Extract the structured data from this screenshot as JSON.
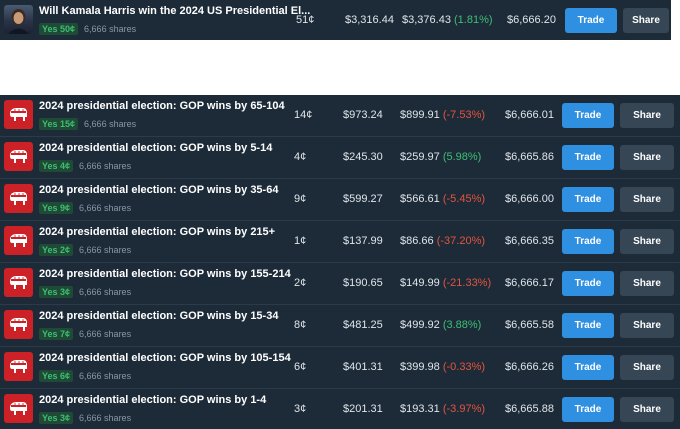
{
  "featured_market": {
    "title": "Will Kamala Harris win the 2024 US Presidential El...",
    "yes_label": "Yes 50¢",
    "shares": "6,666 shares",
    "price": "51¢",
    "cost": "$3,316.44",
    "value": "$3,376.43",
    "change": "(1.81%)",
    "change_direction": "up",
    "payout": "$6,666.20",
    "trade_label": "Trade",
    "share_label": "Share"
  },
  "markets": [
    {
      "title": "2024 presidential election: GOP wins by 65-104",
      "yes_label": "Yes 15¢",
      "shares": "6,666 shares",
      "price": "14¢",
      "cost": "$973.24",
      "value": "$899.91",
      "change": "(-7.53%)",
      "change_direction": "down",
      "payout": "$6,666.01",
      "trade_label": "Trade",
      "share_label": "Share"
    },
    {
      "title": "2024 presidential election: GOP wins by 5-14",
      "yes_label": "Yes 4¢",
      "shares": "6,666 shares",
      "price": "4¢",
      "cost": "$245.30",
      "value": "$259.97",
      "change": "(5.98%)",
      "change_direction": "up",
      "payout": "$6,665.86",
      "trade_label": "Trade",
      "share_label": "Share"
    },
    {
      "title": "2024 presidential election: GOP wins by 35-64",
      "yes_label": "Yes 9¢",
      "shares": "6,666 shares",
      "price": "9¢",
      "cost": "$599.27",
      "value": "$566.61",
      "change": "(-5.45%)",
      "change_direction": "down",
      "payout": "$6,666.00",
      "trade_label": "Trade",
      "share_label": "Share"
    },
    {
      "title": "2024 presidential election: GOP wins by 215+",
      "yes_label": "Yes 2¢",
      "shares": "6,666 shares",
      "price": "1¢",
      "cost": "$137.99",
      "value": "$86.66",
      "change": "(-37.20%)",
      "change_direction": "down",
      "payout": "$6,666.35",
      "trade_label": "Trade",
      "share_label": "Share"
    },
    {
      "title": "2024 presidential election: GOP wins by 155-214",
      "yes_label": "Yes 3¢",
      "shares": "6,666 shares",
      "price": "2¢",
      "cost": "$190.65",
      "value": "$149.99",
      "change": "(-21.33%)",
      "change_direction": "down",
      "payout": "$6,666.17",
      "trade_label": "Trade",
      "share_label": "Share"
    },
    {
      "title": "2024 presidential election: GOP wins by 15-34",
      "yes_label": "Yes 7¢",
      "shares": "6,666 shares",
      "price": "8¢",
      "cost": "$481.25",
      "value": "$499.92",
      "change": "(3.88%)",
      "change_direction": "up",
      "payout": "$6,665.58",
      "trade_label": "Trade",
      "share_label": "Share"
    },
    {
      "title": "2024 presidential election: GOP wins by 105-154",
      "yes_label": "Yes 6¢",
      "shares": "6,666 shares",
      "price": "6¢",
      "cost": "$401.31",
      "value": "$399.98",
      "change": "(-0.33%)",
      "change_direction": "down",
      "payout": "$6,666.26",
      "trade_label": "Trade",
      "share_label": "Share"
    },
    {
      "title": "2024 presidential election: GOP wins by 1-4",
      "yes_label": "Yes 3¢",
      "shares": "6,666 shares",
      "price": "3¢",
      "cost": "$201.31",
      "value": "$193.31",
      "change": "(-3.97%)",
      "change_direction": "down",
      "payout": "$6,665.88",
      "trade_label": "Trade",
      "share_label": "Share"
    }
  ],
  "icons": {
    "featured": "candidate-photo-icon",
    "market": "gop-elephant-icon"
  },
  "colors": {
    "panel_background": "#1d2b39",
    "positive": "#3fbe73",
    "negative": "#e5533e",
    "trade_button": "#2f8fe0",
    "share_button": "#364654",
    "gop_red": "#cc2127"
  }
}
